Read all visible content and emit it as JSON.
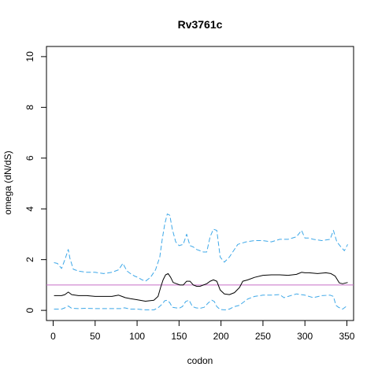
{
  "chart_data": {
    "type": "line",
    "title": "Rv3761c",
    "xlabel": "codon",
    "ylabel": "omega (dN/dS)",
    "xlim": [
      -8,
      358
    ],
    "ylim": [
      -0.4,
      10.4
    ],
    "x_ticks": [
      0,
      50,
      100,
      150,
      200,
      250,
      300,
      350
    ],
    "y_ticks": [
      0,
      2,
      4,
      6,
      8,
      10
    ],
    "grid": false,
    "legend": "none",
    "reference_line": {
      "y": 1,
      "color": "#c86ec8"
    },
    "series": [
      {
        "role": "upper",
        "color": "#3ea8e8",
        "dash": "dashed",
        "x": [
          1,
          5,
          10,
          14,
          18,
          20,
          24,
          30,
          40,
          50,
          60,
          70,
          78,
          83,
          88,
          92,
          97,
          101,
          106,
          110,
          116,
          122,
          127,
          130,
          133,
          136,
          139,
          142,
          146,
          150,
          155,
          159,
          163,
          167,
          171,
          175,
          179,
          183,
          187,
          191,
          195,
          199,
          204,
          210,
          220,
          230,
          240,
          250,
          260,
          270,
          280,
          290,
          296,
          300,
          305,
          310,
          320,
          330,
          334,
          338,
          343,
          347,
          351
        ],
        "y": [
          1.88,
          1.85,
          1.65,
          2.0,
          2.4,
          2.05,
          1.62,
          1.55,
          1.5,
          1.5,
          1.45,
          1.5,
          1.6,
          1.85,
          1.55,
          1.45,
          1.35,
          1.3,
          1.2,
          1.15,
          1.3,
          1.6,
          2.1,
          2.8,
          3.4,
          3.8,
          3.75,
          3.2,
          2.7,
          2.55,
          2.6,
          3.0,
          2.55,
          2.5,
          2.4,
          2.35,
          2.3,
          2.3,
          2.9,
          3.2,
          3.15,
          2.1,
          1.9,
          2.1,
          2.6,
          2.7,
          2.75,
          2.75,
          2.7,
          2.8,
          2.8,
          2.9,
          3.15,
          2.85,
          2.85,
          2.8,
          2.75,
          2.8,
          3.15,
          2.7,
          2.5,
          2.35,
          2.6
        ]
      },
      {
        "role": "mean",
        "color": "#000000",
        "dash": "solid",
        "x": [
          1,
          10,
          14,
          18,
          22,
          30,
          40,
          50,
          60,
          70,
          78,
          82,
          86,
          92,
          100,
          110,
          120,
          125,
          128,
          131,
          134,
          137,
          140,
          143,
          147,
          151,
          155,
          159,
          163,
          167,
          171,
          175,
          179,
          183,
          187,
          191,
          195,
          199,
          204,
          210,
          216,
          222,
          226,
          232,
          240,
          250,
          260,
          270,
          280,
          290,
          296,
          300,
          305,
          315,
          325,
          331,
          336,
          341,
          345,
          351
        ],
        "y": [
          0.58,
          0.58,
          0.62,
          0.72,
          0.62,
          0.58,
          0.58,
          0.55,
          0.55,
          0.55,
          0.6,
          0.55,
          0.5,
          0.46,
          0.42,
          0.36,
          0.4,
          0.55,
          0.9,
          1.2,
          1.4,
          1.45,
          1.3,
          1.1,
          1.05,
          1.0,
          1.0,
          1.15,
          1.15,
          1.0,
          0.95,
          0.95,
          1.0,
          1.05,
          1.15,
          1.2,
          1.15,
          0.8,
          0.65,
          0.62,
          0.7,
          0.9,
          1.15,
          1.2,
          1.3,
          1.38,
          1.4,
          1.4,
          1.38,
          1.42,
          1.5,
          1.48,
          1.48,
          1.45,
          1.48,
          1.45,
          1.35,
          1.08,
          1.05,
          1.1
        ]
      },
      {
        "role": "lower",
        "color": "#3ea8e8",
        "dash": "dashed",
        "x": [
          1,
          10,
          14,
          18,
          22,
          30,
          40,
          50,
          60,
          70,
          80,
          85,
          92,
          100,
          110,
          120,
          125,
          130,
          133,
          136,
          139,
          142,
          146,
          150,
          154,
          158,
          162,
          166,
          170,
          175,
          180,
          185,
          189,
          192,
          195,
          199,
          205,
          210,
          216,
          222,
          226,
          232,
          240,
          250,
          260,
          270,
          275,
          280,
          290,
          300,
          310,
          320,
          330,
          334,
          337,
          340,
          345,
          351
        ],
        "y": [
          0.05,
          0.05,
          0.1,
          0.17,
          0.08,
          0.07,
          0.08,
          0.07,
          0.07,
          0.07,
          0.07,
          0.1,
          0.05,
          0.05,
          0.02,
          0.02,
          0.1,
          0.25,
          0.38,
          0.4,
          0.3,
          0.12,
          0.1,
          0.08,
          0.15,
          0.35,
          0.4,
          0.15,
          0.1,
          0.08,
          0.12,
          0.3,
          0.4,
          0.35,
          0.15,
          0.03,
          0.02,
          0.05,
          0.15,
          0.2,
          0.3,
          0.45,
          0.55,
          0.6,
          0.6,
          0.62,
          0.5,
          0.55,
          0.65,
          0.6,
          0.5,
          0.58,
          0.6,
          0.55,
          0.2,
          0.12,
          0.05,
          0.2
        ]
      }
    ]
  }
}
